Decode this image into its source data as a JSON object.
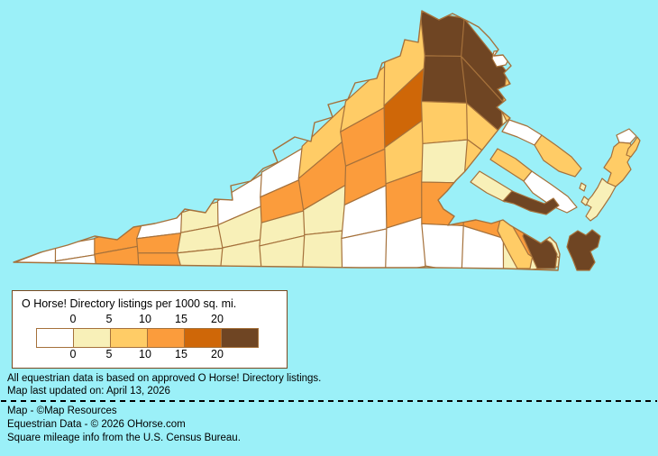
{
  "map": {
    "background_color": "#9BF0F8",
    "county_border_color": "#A5713B",
    "class_colors": [
      "#FFFFFF",
      "#F8F0B8",
      "#FFCC66",
      "#FB9C3C",
      "#CF6708",
      "#6F4523"
    ]
  },
  "legend": {
    "title": "O Horse! Directory listings per 1000 sq. mi.",
    "tick_labels_top": [
      "0",
      "5",
      "10",
      "15",
      "20"
    ],
    "tick_labels_bottom": [
      "0",
      "5",
      "10",
      "15",
      "20"
    ]
  },
  "notes": {
    "data_note": "All equestrian data is based on approved O Horse! Directory listings.",
    "updated_note": "Map last updated on: April 13, 2026"
  },
  "credits": {
    "map_credit": "Map - ©Map Resources",
    "data_credit": "Equestrian Data - © 2026 OHorse.com",
    "mileage_credit": "Square mileage info from the U.S. Census Bureau."
  }
}
